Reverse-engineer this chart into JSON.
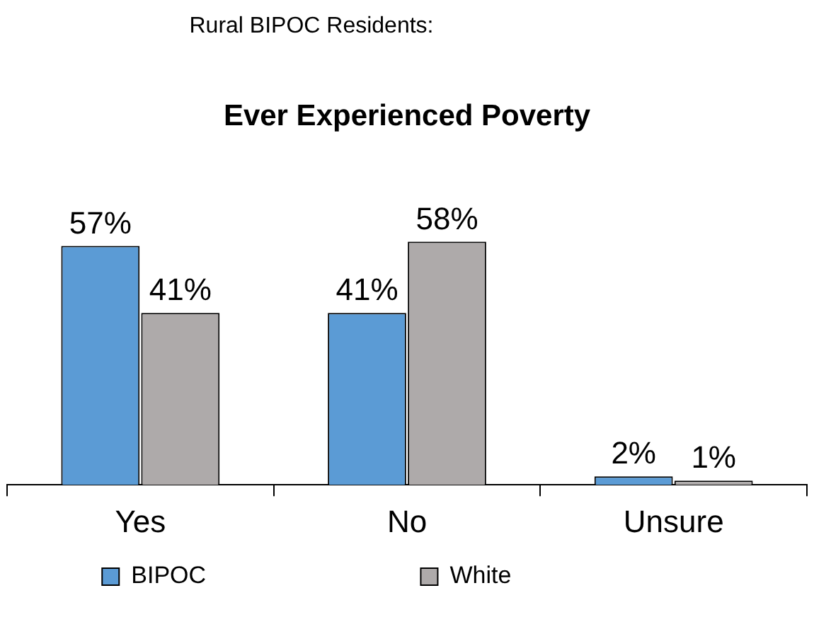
{
  "chart_data": {
    "type": "bar",
    "subtitle": "Rural BIPOC Residents:",
    "title": "Ever Experienced Poverty",
    "categories": [
      "Yes",
      "No",
      "Unsure"
    ],
    "series": [
      {
        "name": "BIPOC",
        "color": "#5b9bd5",
        "values": [
          57,
          41,
          2
        ],
        "value_labels": [
          "57%",
          "41%",
          "2%"
        ]
      },
      {
        "name": "White",
        "color": "#aeaaaa",
        "values": [
          41,
          58,
          1
        ],
        "value_labels": [
          "41%",
          "58%",
          "1%"
        ]
      }
    ],
    "legend": "bottom"
  }
}
